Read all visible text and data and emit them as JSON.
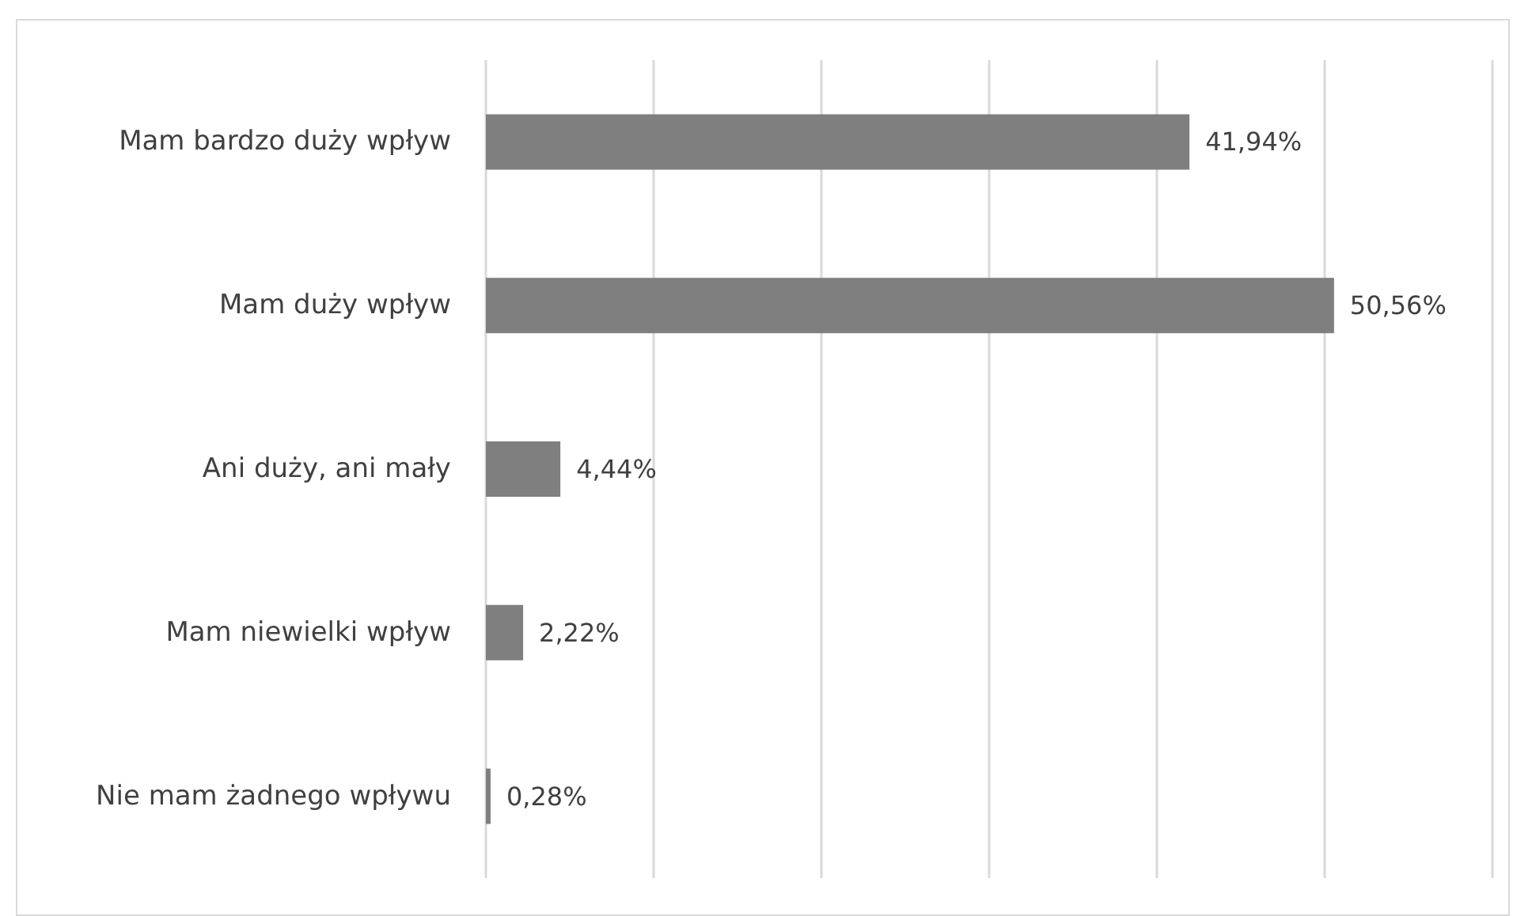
{
  "chart_data": {
    "type": "bar",
    "orientation": "horizontal",
    "categories": [
      "Mam bardzo duży wpływ",
      "Mam duży wpływ",
      "Ani duży, ani mały",
      "Mam niewielki wpływ",
      "Nie mam żadnego wpływu"
    ],
    "values": [
      41.94,
      50.56,
      4.44,
      2.22,
      0.28
    ],
    "value_labels": [
      "41,94%",
      "50,56%",
      "4,44%",
      "2,22%",
      "0,28%"
    ],
    "color": "#7f7f7f",
    "xlim": [
      0,
      60
    ],
    "xticks": [
      {
        "value": 0,
        "label": null
      },
      {
        "value": 10,
        "label": null
      },
      {
        "value": 20,
        "label": null
      },
      {
        "value": 30,
        "label": null
      },
      {
        "value": 40,
        "label": null
      },
      {
        "value": 50,
        "label": null
      },
      {
        "value": 60,
        "label": null
      }
    ],
    "grid": "x",
    "tick_labels": "y"
  }
}
